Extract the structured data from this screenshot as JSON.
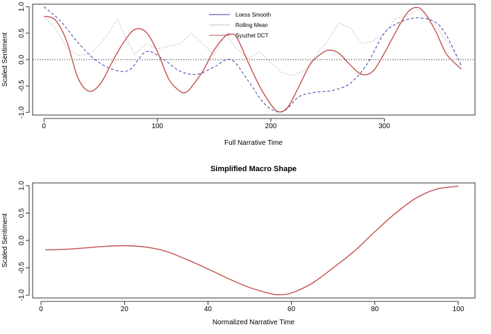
{
  "colors": {
    "loess": "#3a3ab0",
    "rolling": "#bdbdbd",
    "dct": "#c0504d",
    "zero_line": "#000000"
  },
  "chart_data": [
    {
      "type": "line",
      "title": "",
      "xlabel": "Full Narrative Time",
      "ylabel": "Scaled Sentiment",
      "xlim": [
        -10,
        380
      ],
      "ylim": [
        -1.05,
        1.05
      ],
      "x_ticks": [
        0,
        100,
        200,
        300
      ],
      "y_ticks": [
        -1.0,
        -0.5,
        0.0,
        0.5,
        1.0
      ],
      "y_tick_labels": [
        "-1.0",
        "-0.5",
        "0.0",
        "0.5",
        "1.0"
      ],
      "grid": false,
      "reference_line": {
        "y": 0,
        "style": "dotted"
      },
      "legend": {
        "position": "top-center",
        "entries": [
          "Loess Smooth",
          "Rolling Mean",
          "Syuzhet DCT"
        ]
      },
      "series": [
        {
          "name": "Loess Smooth",
          "style": "dashed",
          "x": [
            0,
            15,
            30,
            45,
            60,
            75,
            90,
            105,
            120,
            135,
            150,
            165,
            180,
            195,
            210,
            225,
            240,
            255,
            270,
            285,
            300,
            315,
            330,
            345,
            355,
            368
          ],
          "y": [
            1.0,
            0.72,
            0.32,
            0.0,
            -0.18,
            -0.2,
            0.15,
            0.01,
            -0.22,
            -0.28,
            -0.14,
            0.0,
            -0.4,
            -0.85,
            -0.99,
            -0.7,
            -0.62,
            -0.58,
            -0.45,
            -0.08,
            0.5,
            0.72,
            0.79,
            0.71,
            0.45,
            -0.12
          ]
        },
        {
          "name": "Rolling Mean",
          "style": "dotted",
          "x": [
            0,
            10,
            20,
            30,
            40,
            50,
            60,
            65,
            70,
            80,
            90,
            100,
            110,
            120,
            130,
            140,
            150,
            160,
            170,
            180,
            190,
            200,
            210,
            220,
            230,
            240,
            250,
            260,
            270,
            280,
            290,
            300,
            310,
            320,
            330,
            340,
            350,
            360,
            368
          ],
          "y": [
            0.8,
            0.6,
            0.22,
            0.08,
            0.1,
            0.3,
            0.6,
            0.77,
            0.5,
            0.1,
            0.3,
            0.2,
            0.25,
            0.3,
            0.5,
            0.3,
            0.08,
            0.48,
            0.2,
            0.02,
            0.15,
            -0.05,
            -0.25,
            -0.3,
            -0.2,
            0.1,
            0.35,
            0.7,
            0.6,
            0.3,
            0.35,
            0.5,
            0.78,
            0.82,
            0.95,
            0.8,
            0.5,
            0.2,
            -0.1
          ]
        },
        {
          "name": "Syuzhet DCT",
          "style": "solid",
          "x": [
            0,
            10,
            20,
            30,
            40,
            50,
            60,
            70,
            80,
            90,
            100,
            110,
            120,
            125,
            130,
            140,
            150,
            160,
            165,
            170,
            180,
            190,
            200,
            207,
            215,
            225,
            235,
            245,
            252,
            260,
            270,
            280,
            290,
            300,
            310,
            320,
            328,
            335,
            345,
            355,
            368
          ],
          "y": [
            0.82,
            0.75,
            0.35,
            -0.35,
            -0.6,
            -0.45,
            -0.05,
            0.32,
            0.57,
            0.52,
            0.15,
            -0.37,
            -0.6,
            -0.62,
            -0.52,
            -0.22,
            0.18,
            0.45,
            0.48,
            0.42,
            -0.05,
            -0.5,
            -0.85,
            -0.99,
            -0.9,
            -0.5,
            -0.08,
            0.12,
            0.18,
            0.12,
            -0.1,
            -0.28,
            -0.22,
            0.12,
            0.52,
            0.88,
            0.99,
            0.9,
            0.55,
            0.1,
            -0.18
          ]
        }
      ]
    },
    {
      "type": "line",
      "title": "Simplified Macro Shape",
      "xlabel": "Normalized Narrative Time",
      "ylabel": "Scaled Sentiment",
      "xlim": [
        -2,
        104
      ],
      "ylim": [
        -1.05,
        1.05
      ],
      "x_ticks": [
        0,
        20,
        40,
        60,
        80,
        100
      ],
      "y_ticks": [
        -1.0,
        -0.5,
        0.0,
        0.5,
        1.0
      ],
      "y_tick_labels": [
        "-1.0",
        "-0.5",
        "0.0",
        "0.5",
        "1.0"
      ],
      "grid": false,
      "series": [
        {
          "style": "solid",
          "x": [
            1,
            5,
            10,
            15,
            20,
            25,
            30,
            35,
            40,
            45,
            50,
            55,
            57,
            60,
            65,
            70,
            75,
            80,
            85,
            90,
            95,
            100
          ],
          "y": [
            -0.17,
            -0.165,
            -0.14,
            -0.11,
            -0.095,
            -0.12,
            -0.2,
            -0.35,
            -0.52,
            -0.7,
            -0.86,
            -0.97,
            -0.99,
            -0.96,
            -0.78,
            -0.5,
            -0.2,
            0.16,
            0.5,
            0.78,
            0.94,
            0.99
          ]
        }
      ]
    }
  ]
}
